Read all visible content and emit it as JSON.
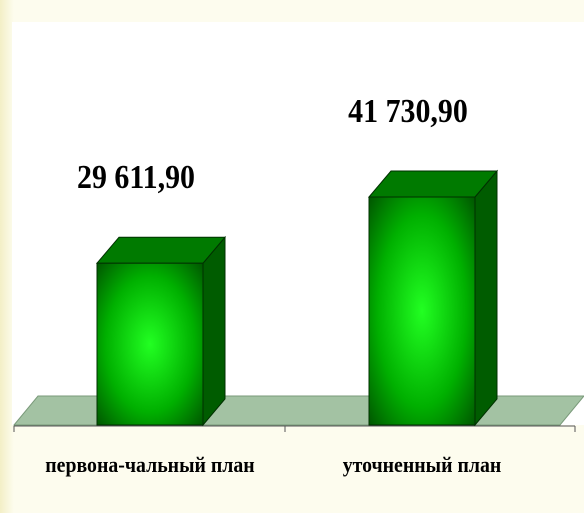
{
  "chart_data": {
    "type": "bar3d",
    "categories": [
      "первона-чальный план",
      "уточненный план"
    ],
    "values": [
      29611.9,
      41730.9
    ],
    "value_labels": [
      "29 611,90",
      "41 730,90"
    ],
    "color": "#00c800"
  }
}
